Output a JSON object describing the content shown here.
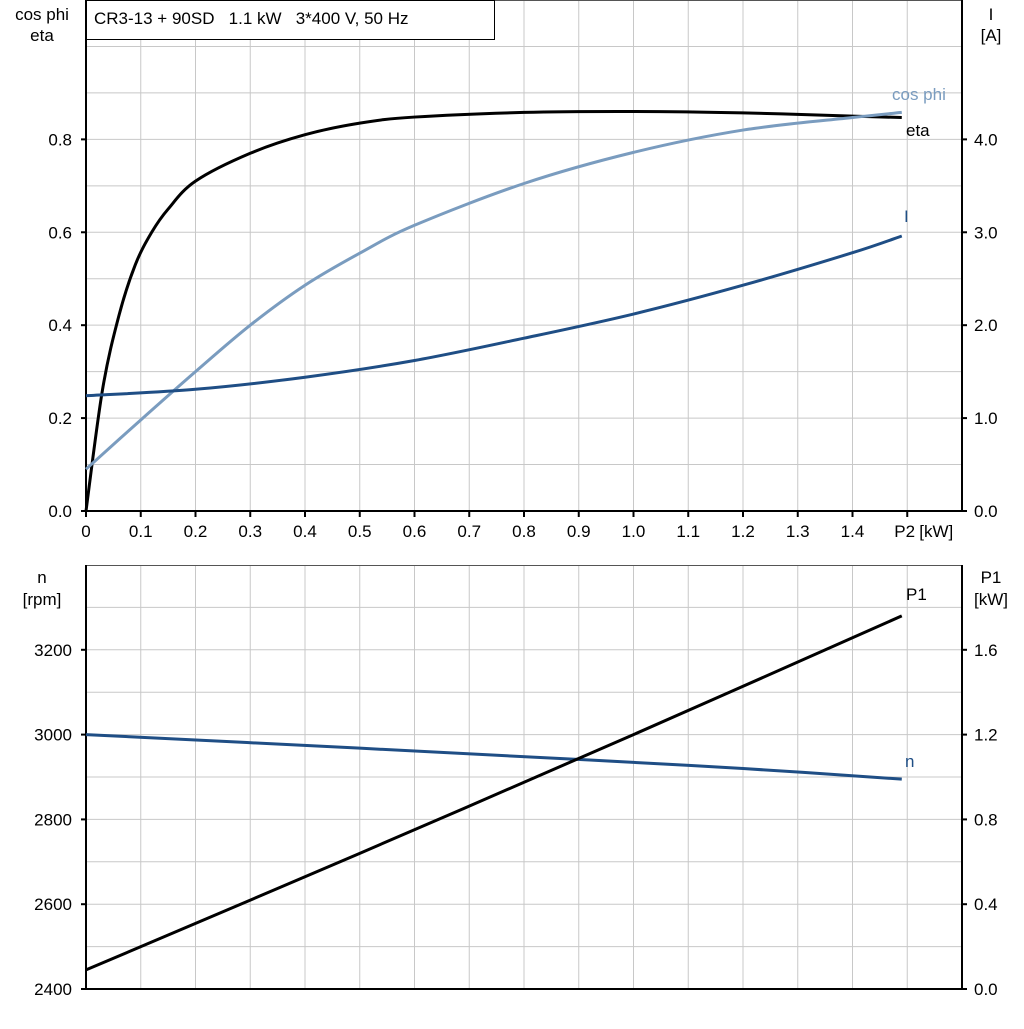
{
  "title": "CR3-13 + 90SD   1.1 kW   3*400 V, 50 Hz",
  "chart_data": [
    {
      "type": "line",
      "xlabel": "P2 [kW]",
      "xlabel_parts": [
        "P2",
        "[kW]"
      ],
      "xlim": [
        0,
        1.6
      ],
      "xticks": [
        "0",
        "0.1",
        "0.2",
        "0.3",
        "0.4",
        "0.5",
        "0.6",
        "0.7",
        "0.8",
        "0.9",
        "1.0",
        "1.1",
        "1.2",
        "1.3",
        "1.4"
      ],
      "ylabel_left": [
        "cos phi",
        "eta"
      ],
      "ylim_left": [
        0,
        1.1
      ],
      "yticks_left": [
        "0.0",
        "0.2",
        "0.4",
        "0.6",
        "0.8"
      ],
      "ylabel_right": [
        "I",
        "[A]"
      ],
      "ylim_right": [
        0,
        5.5
      ],
      "yticks_right": [
        "0.0",
        "1.0",
        "2.0",
        "3.0",
        "4.0"
      ],
      "grid": true,
      "series": [
        {
          "name": "eta",
          "axis": "left",
          "color": "#000000",
          "x": [
            0,
            0.03,
            0.06,
            0.09,
            0.12,
            0.15,
            0.2,
            0.3,
            0.4,
            0.5,
            0.6,
            0.8,
            1.0,
            1.2,
            1.4,
            1.49
          ],
          "y": [
            0,
            0.26,
            0.42,
            0.53,
            0.6,
            0.65,
            0.71,
            0.77,
            0.81,
            0.835,
            0.848,
            0.858,
            0.86,
            0.857,
            0.85,
            0.847
          ]
        },
        {
          "name": "cos phi",
          "axis": "left",
          "color": "#7a9cbf",
          "x": [
            0,
            0.1,
            0.2,
            0.3,
            0.4,
            0.5,
            0.6,
            0.8,
            1.0,
            1.2,
            1.4,
            1.49
          ],
          "y": [
            0.09,
            0.196,
            0.3,
            0.4,
            0.486,
            0.555,
            0.615,
            0.705,
            0.772,
            0.82,
            0.847,
            0.858
          ]
        },
        {
          "name": "I",
          "axis": "right",
          "color": "#1f4e85",
          "x": [
            0,
            0.2,
            0.4,
            0.6,
            0.8,
            1.0,
            1.2,
            1.4,
            1.49
          ],
          "y": [
            1.24,
            1.31,
            1.44,
            1.62,
            1.86,
            2.12,
            2.43,
            2.78,
            2.96
          ]
        }
      ]
    },
    {
      "type": "line",
      "xlim": [
        0,
        1.6
      ],
      "ylabel_left": [
        "n",
        "[rpm]"
      ],
      "ylim_left": [
        2400,
        3400
      ],
      "yticks_left": [
        "2400",
        "2600",
        "2800",
        "3000",
        "3200"
      ],
      "ylabel_right": [
        "P1",
        "[kW]"
      ],
      "ylim_right": [
        0,
        2.0
      ],
      "yticks_right": [
        "0.0",
        "0.4",
        "0.8",
        "1.2",
        "1.6"
      ],
      "grid": true,
      "series": [
        {
          "name": "n",
          "axis": "left",
          "color": "#1f4e85",
          "x": [
            0,
            0.5,
            0.92,
            1.2,
            1.49
          ],
          "y": [
            3000,
            2968,
            2940,
            2920,
            2895
          ]
        },
        {
          "name": "P1",
          "axis": "right",
          "color": "#000000",
          "x": [
            0,
            0.5,
            1.0,
            1.49
          ],
          "y": [
            0.09,
            0.64,
            1.2,
            1.76
          ]
        }
      ]
    }
  ]
}
